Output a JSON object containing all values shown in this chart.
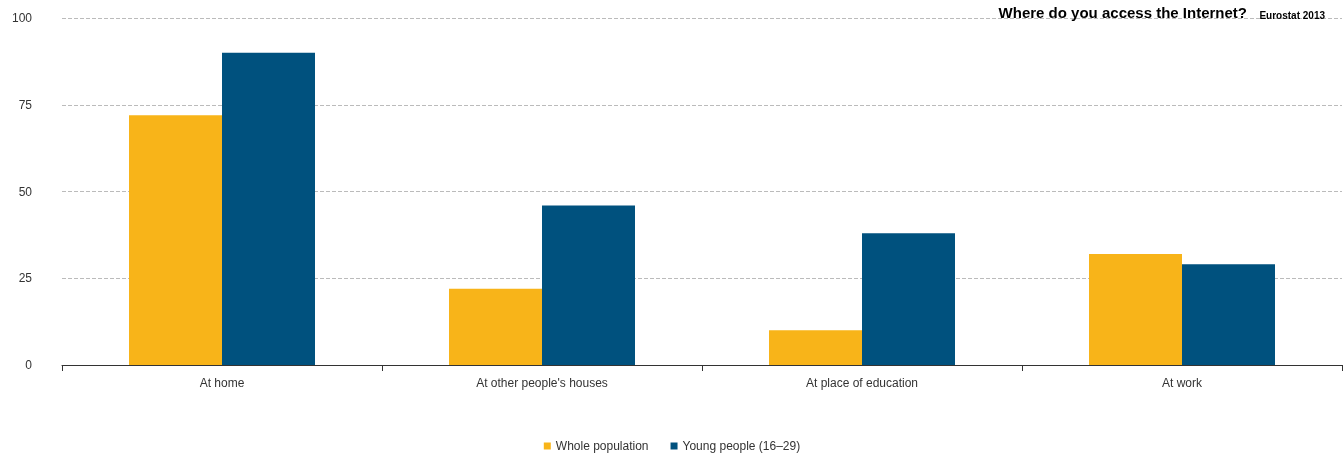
{
  "chart_data": {
    "type": "bar",
    "title": "Where do you access the Internet?",
    "subtitle": "Eurostat 2013",
    "categories": [
      "At home",
      "At other people's houses",
      "At place of education",
      "At work"
    ],
    "series": [
      {
        "name": "Whole population",
        "color": "#f8b419",
        "values": [
          72,
          22,
          10,
          32
        ]
      },
      {
        "name": "Young people (16–29)",
        "color": "#00517e",
        "values": [
          90,
          46,
          38,
          29
        ]
      }
    ],
    "ylim": [
      0,
      100
    ],
    "yticks": [
      0,
      25,
      50,
      75,
      100
    ],
    "grid": "y",
    "legend": "bottom"
  }
}
